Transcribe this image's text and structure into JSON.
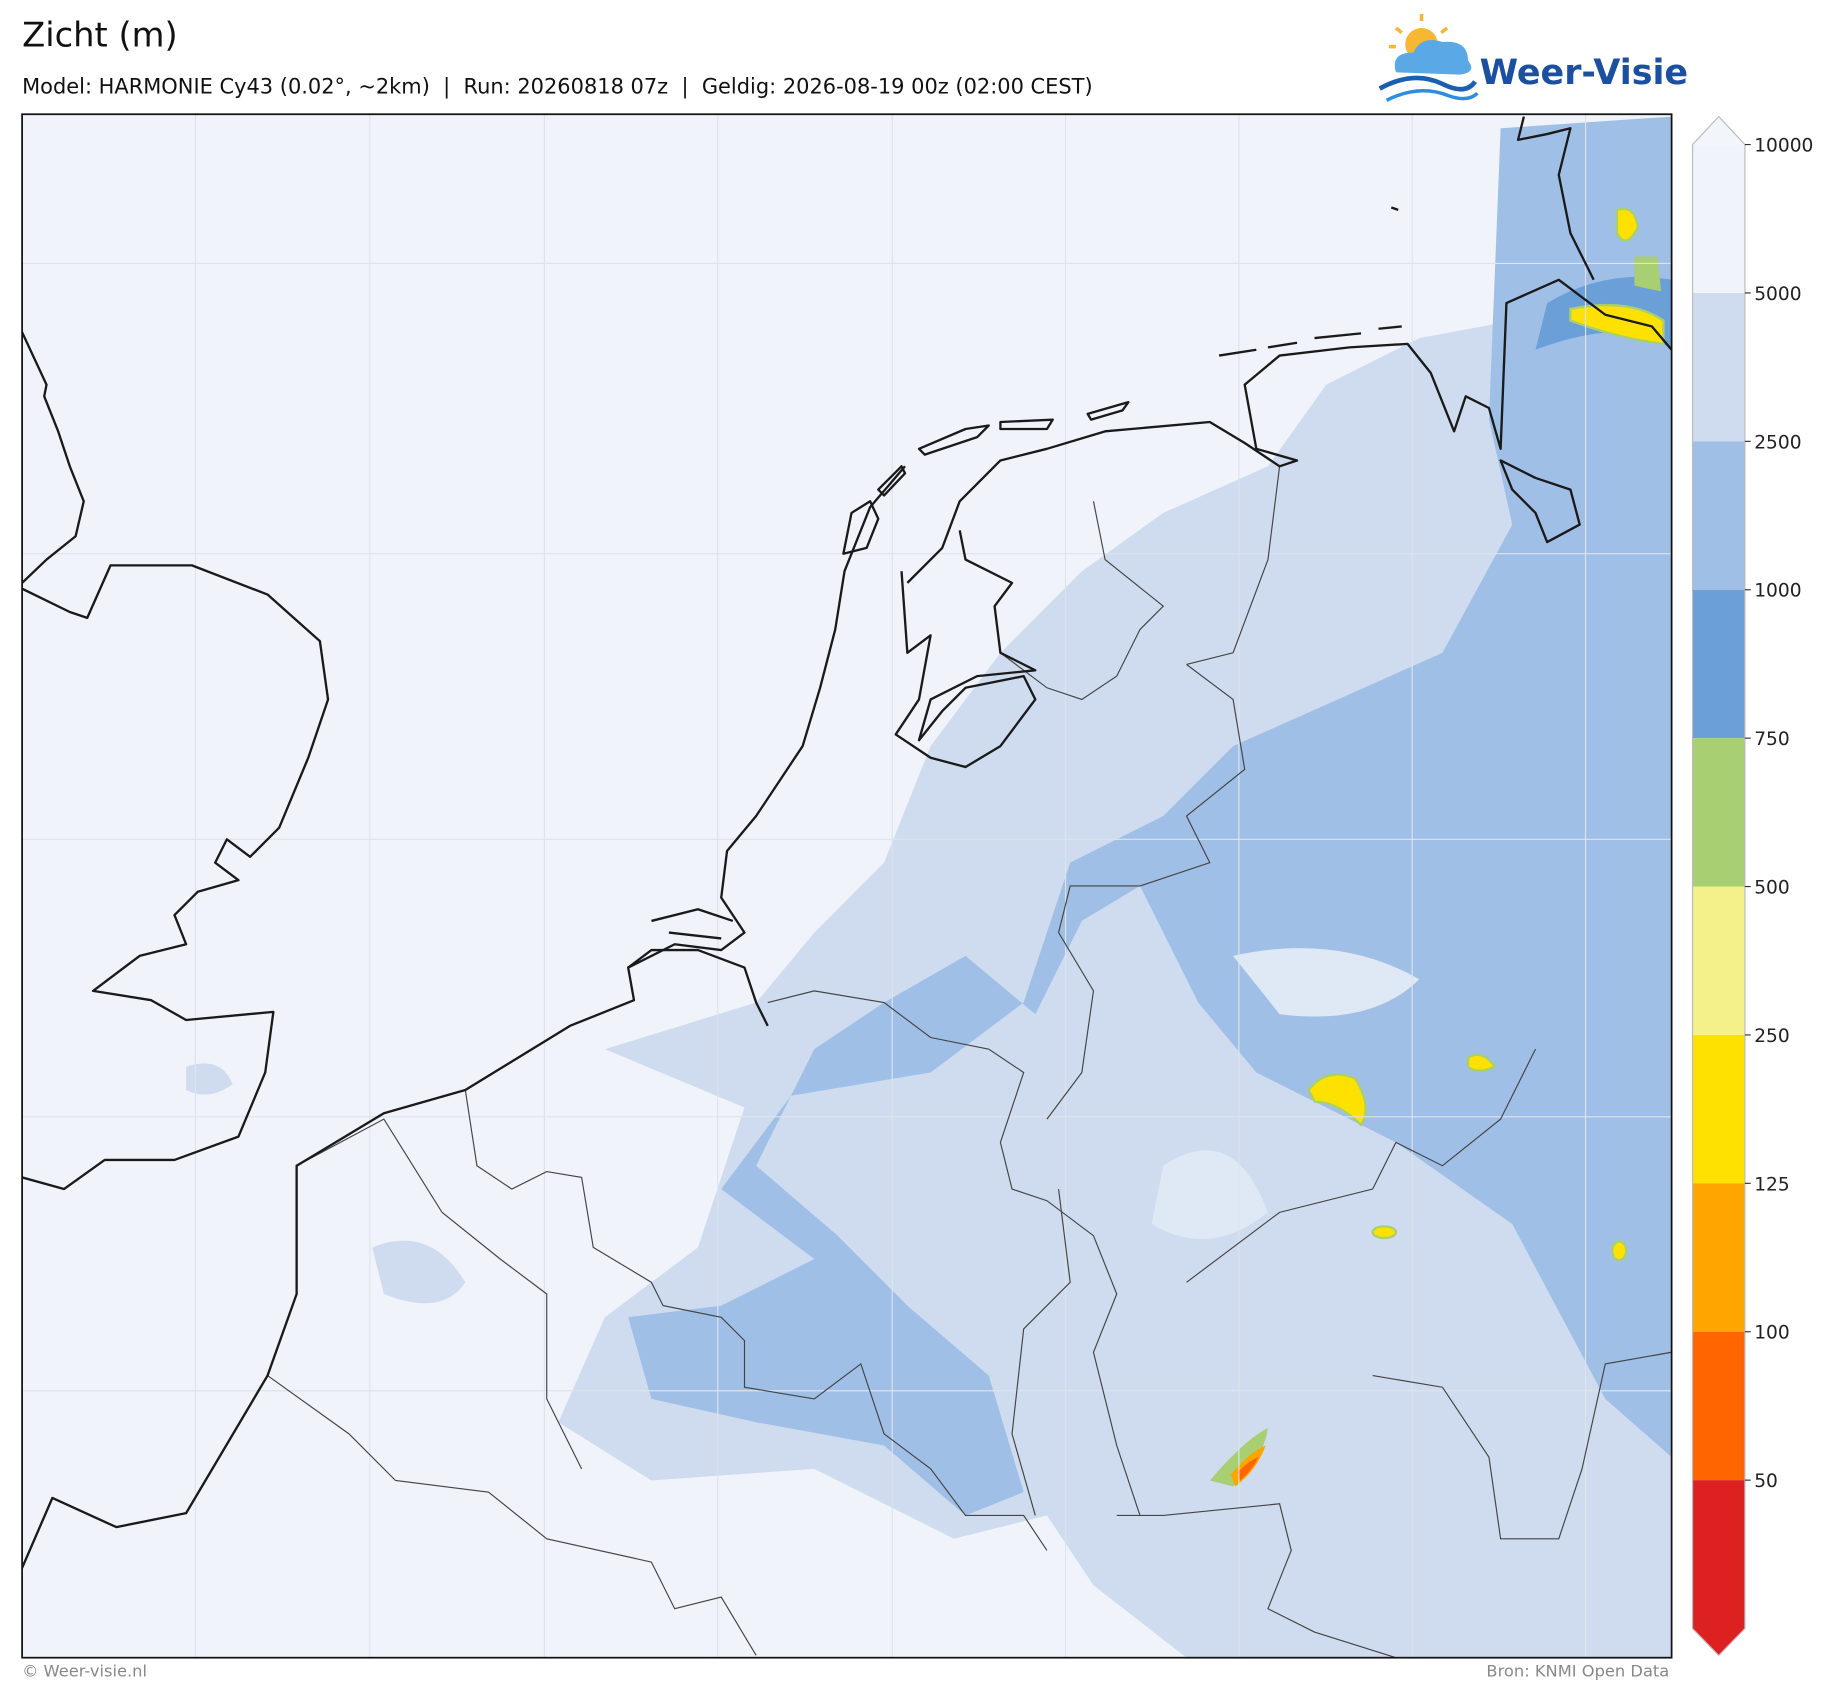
{
  "header": {
    "title": "Zicht (m)",
    "subtitle": "Model: HARMONIE Cy43 (0.02°, ~2km)  |  Run: 20260818 07z  |  Geldig: 2026-08-19 00z (02:00 CEST)"
  },
  "logo": {
    "text": "Weer-Visie"
  },
  "colorbar": {
    "ticks": [
      10000,
      5000,
      2500,
      1000,
      750,
      500,
      250,
      125,
      100,
      50
    ],
    "colors": [
      "#f2f5fa",
      "#f0f4fa",
      "#cfdcef",
      "#a0bfe6",
      "#6a9fd8",
      "#a8cf72",
      "#f4f08a",
      "#ffe100",
      "#ffa500",
      "#ff6600",
      "#dd2020"
    ]
  },
  "footer": {
    "left": "© Weer-visie.nl",
    "right": "Bron: KNMI Open Data"
  }
}
